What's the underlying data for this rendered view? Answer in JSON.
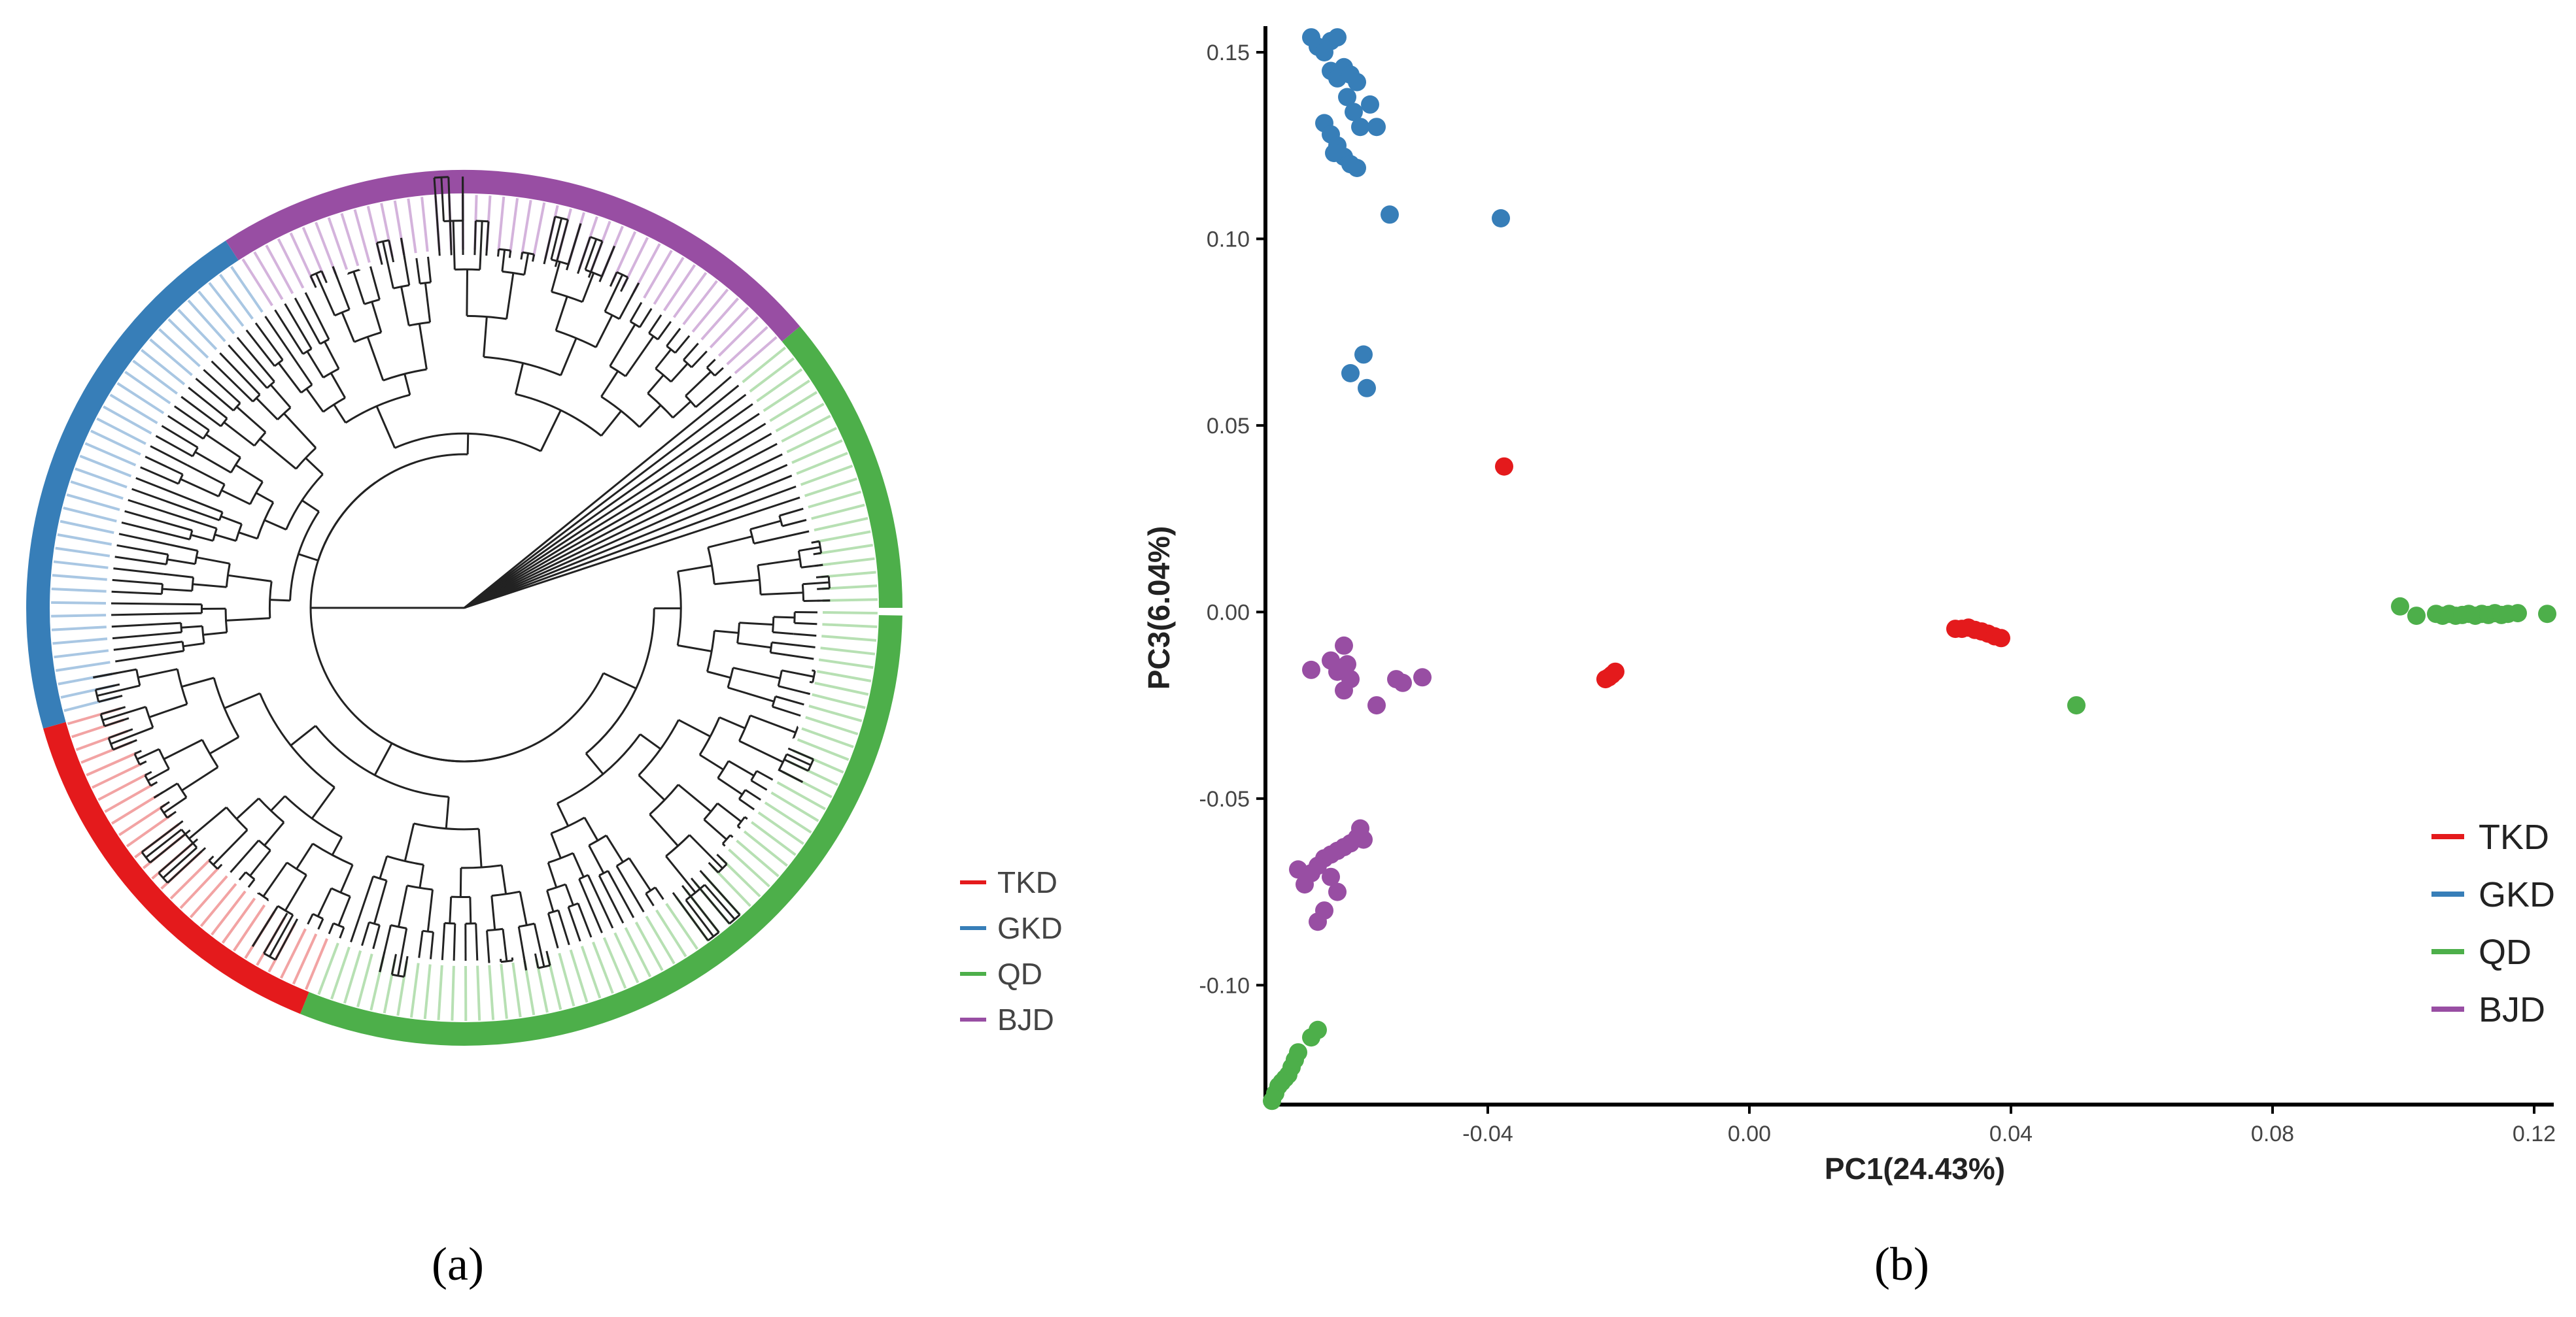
{
  "colors": {
    "TKD": "#e41a1c",
    "GKD": "#377eb8",
    "QD": "#4daf4a",
    "BJD": "#984ea3",
    "branch": "#222222"
  },
  "panel_a": {
    "label": "(a)",
    "legend": [
      "TKD",
      "GKD",
      "QD",
      "BJD"
    ],
    "ring": [
      {
        "group": "QD",
        "from_deg": -40,
        "to_deg": 0
      },
      {
        "group": "QD",
        "from_deg": 1,
        "to_deg": 112
      },
      {
        "group": "TKD",
        "from_deg": 112,
        "to_deg": 164
      },
      {
        "group": "GKD",
        "from_deg": 164,
        "to_deg": 237
      },
      {
        "group": "BJD",
        "from_deg": 237,
        "to_deg": 320
      }
    ]
  },
  "panel_b": {
    "label": "(b)",
    "chart_data": {
      "type": "scatter",
      "title": "",
      "xlabel": "PC1(24.43%)",
      "ylabel": "PC3(6.04%)",
      "xlim": [
        -0.074,
        0.123
      ],
      "ylim": [
        -0.132,
        0.157
      ],
      "xticks": [
        -0.04,
        0.0,
        0.04,
        0.08,
        0.12
      ],
      "xtick_labels": [
        "-0.04",
        "0.00",
        "0.04",
        "0.08",
        "0.12"
      ],
      "yticks": [
        -0.1,
        -0.05,
        0.0,
        0.05,
        0.1,
        0.15
      ],
      "ytick_labels": [
        "-0.10",
        "-0.05",
        "0.00",
        "0.05",
        "0.10",
        "0.15"
      ],
      "grid": false,
      "legend_position": "bottom-right",
      "series": [
        {
          "name": "TKD",
          "points": [
            [
              -0.0375,
              0.039
            ],
            [
              -0.022,
              -0.018
            ],
            [
              -0.0215,
              -0.0175
            ],
            [
              -0.021,
              -0.0168
            ],
            [
              -0.0205,
              -0.016
            ],
            [
              0.0315,
              -0.0045
            ],
            [
              0.0325,
              -0.0045
            ],
            [
              0.0335,
              -0.0042
            ],
            [
              0.0345,
              -0.0048
            ],
            [
              0.0355,
              -0.0052
            ],
            [
              0.0365,
              -0.0058
            ],
            [
              0.0375,
              -0.0065
            ],
            [
              0.0385,
              -0.007
            ]
          ]
        },
        {
          "name": "GKD",
          "points": [
            [
              -0.067,
              0.154
            ],
            [
              -0.066,
              0.1515
            ],
            [
              -0.065,
              0.15
            ],
            [
              -0.064,
              0.153
            ],
            [
              -0.063,
              0.154
            ],
            [
              -0.064,
              0.145
            ],
            [
              -0.063,
              0.143
            ],
            [
              -0.062,
              0.146
            ],
            [
              -0.061,
              0.144
            ],
            [
              -0.06,
              0.142
            ],
            [
              -0.0615,
              0.138
            ],
            [
              -0.0605,
              0.134
            ],
            [
              -0.058,
              0.136
            ],
            [
              -0.057,
              0.13
            ],
            [
              -0.0595,
              0.13
            ],
            [
              -0.065,
              0.131
            ],
            [
              -0.064,
              0.128
            ],
            [
              -0.063,
              0.125
            ],
            [
              -0.062,
              0.122
            ],
            [
              -0.061,
              0.12
            ],
            [
              -0.06,
              0.119
            ],
            [
              -0.0635,
              0.123
            ],
            [
              -0.055,
              0.1065
            ],
            [
              -0.038,
              0.1055
            ],
            [
              -0.059,
              0.069
            ],
            [
              -0.061,
              0.064
            ],
            [
              -0.0585,
              0.06
            ]
          ]
        },
        {
          "name": "QD",
          "points": [
            [
              0.05,
              -0.025
            ],
            [
              0.0995,
              0.0015
            ],
            [
              0.102,
              -0.001
            ],
            [
              0.105,
              -0.0005
            ],
            [
              0.106,
              -0.001
            ],
            [
              0.107,
              -0.0005
            ],
            [
              0.108,
              -0.001
            ],
            [
              0.109,
              -0.0008
            ],
            [
              0.11,
              -0.0005
            ],
            [
              0.111,
              -0.001
            ],
            [
              0.112,
              -0.0005
            ],
            [
              0.113,
              -0.0008
            ],
            [
              0.114,
              -0.0003
            ],
            [
              0.115,
              -0.0008
            ],
            [
              0.116,
              -0.0005
            ],
            [
              0.1175,
              -0.0003
            ],
            [
              0.122,
              -0.0005
            ],
            [
              -0.073,
              -0.131
            ],
            [
              -0.0725,
              -0.129
            ],
            [
              -0.072,
              -0.127
            ],
            [
              -0.0715,
              -0.126
            ],
            [
              -0.071,
              -0.125
            ],
            [
              -0.0705,
              -0.124
            ],
            [
              -0.07,
              -0.122
            ],
            [
              -0.0695,
              -0.12
            ],
            [
              -0.069,
              -0.118
            ],
            [
              -0.067,
              -0.114
            ],
            [
              -0.066,
              -0.112
            ]
          ]
        },
        {
          "name": "BJD",
          "points": [
            [
              -0.067,
              -0.0155
            ],
            [
              -0.064,
              -0.013
            ],
            [
              -0.063,
              -0.016
            ],
            [
              -0.062,
              -0.009
            ],
            [
              -0.0615,
              -0.014
            ],
            [
              -0.061,
              -0.018
            ],
            [
              -0.062,
              -0.021
            ],
            [
              -0.057,
              -0.025
            ],
            [
              -0.054,
              -0.018
            ],
            [
              -0.053,
              -0.019
            ],
            [
              -0.05,
              -0.0175
            ],
            [
              -0.069,
              -0.069
            ],
            [
              -0.068,
              -0.073
            ],
            [
              -0.067,
              -0.07
            ],
            [
              -0.066,
              -0.068
            ],
            [
              -0.065,
              -0.066
            ],
            [
              -0.064,
              -0.065
            ],
            [
              -0.063,
              -0.064
            ],
            [
              -0.062,
              -0.063
            ],
            [
              -0.061,
              -0.062
            ],
            [
              -0.06,
              -0.0605
            ],
            [
              -0.059,
              -0.061
            ],
            [
              -0.0595,
              -0.058
            ],
            [
              -0.064,
              -0.071
            ],
            [
              -0.063,
              -0.075
            ],
            [
              -0.065,
              -0.08
            ],
            [
              -0.066,
              -0.083
            ]
          ]
        }
      ]
    }
  }
}
